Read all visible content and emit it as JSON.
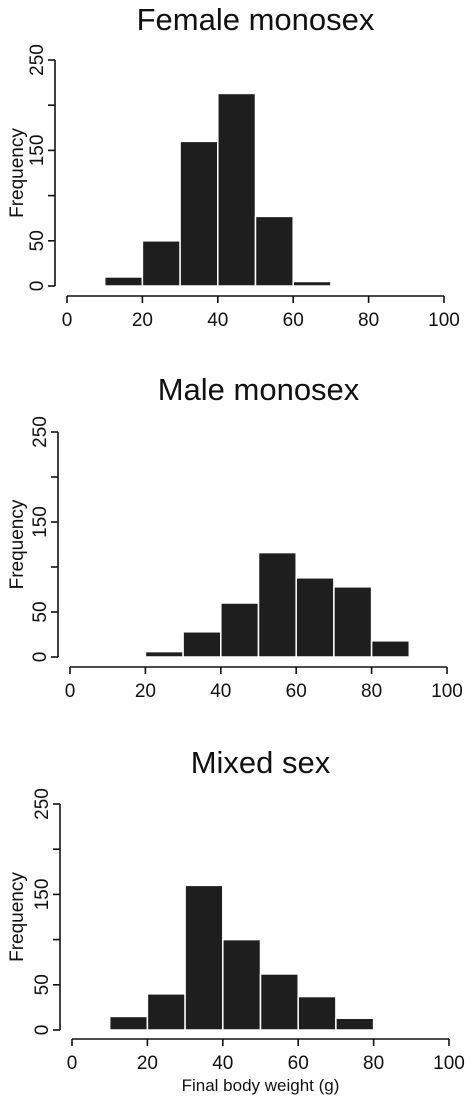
{
  "chart_data": [
    {
      "type": "bar",
      "title": "Female monosex",
      "ylabel": "Frequency",
      "xlabel": "",
      "xlim": [
        0,
        100
      ],
      "ylim": [
        0,
        250
      ],
      "xticks": [
        "0",
        "20",
        "40",
        "60",
        "80",
        "100"
      ],
      "yticks": [
        "0",
        "50",
        "150",
        "250"
      ],
      "bins": [
        [
          10,
          20
        ],
        [
          20,
          30
        ],
        [
          30,
          40
        ],
        [
          40,
          50
        ],
        [
          50,
          60
        ],
        [
          60,
          70
        ]
      ],
      "values": [
        10,
        50,
        160,
        213,
        77,
        5
      ]
    },
    {
      "type": "bar",
      "title": "Male monosex",
      "ylabel": "Frequency",
      "xlabel": "",
      "xlim": [
        0,
        100
      ],
      "ylim": [
        0,
        250
      ],
      "xticks": [
        "0",
        "20",
        "40",
        "60",
        "80",
        "100"
      ],
      "yticks": [
        "0",
        "50",
        "150",
        "250"
      ],
      "bins": [
        [
          20,
          30
        ],
        [
          30,
          40
        ],
        [
          40,
          50
        ],
        [
          50,
          60
        ],
        [
          60,
          70
        ],
        [
          70,
          80
        ],
        [
          80,
          90
        ]
      ],
      "values": [
        6,
        28,
        60,
        116,
        88,
        78,
        18
      ]
    },
    {
      "type": "bar",
      "title": "Mixed sex",
      "ylabel": "Frequency",
      "xlabel": "Final body weight (g)",
      "xlim": [
        0,
        100
      ],
      "ylim": [
        0,
        250
      ],
      "xticks": [
        "0",
        "20",
        "40",
        "60",
        "80",
        "100"
      ],
      "yticks": [
        "0",
        "50",
        "150",
        "250"
      ],
      "bins": [
        [
          10,
          20
        ],
        [
          20,
          30
        ],
        [
          30,
          40
        ],
        [
          40,
          50
        ],
        [
          50,
          60
        ],
        [
          60,
          70
        ],
        [
          70,
          80
        ]
      ],
      "values": [
        15,
        40,
        160,
        100,
        62,
        37,
        13
      ]
    }
  ]
}
